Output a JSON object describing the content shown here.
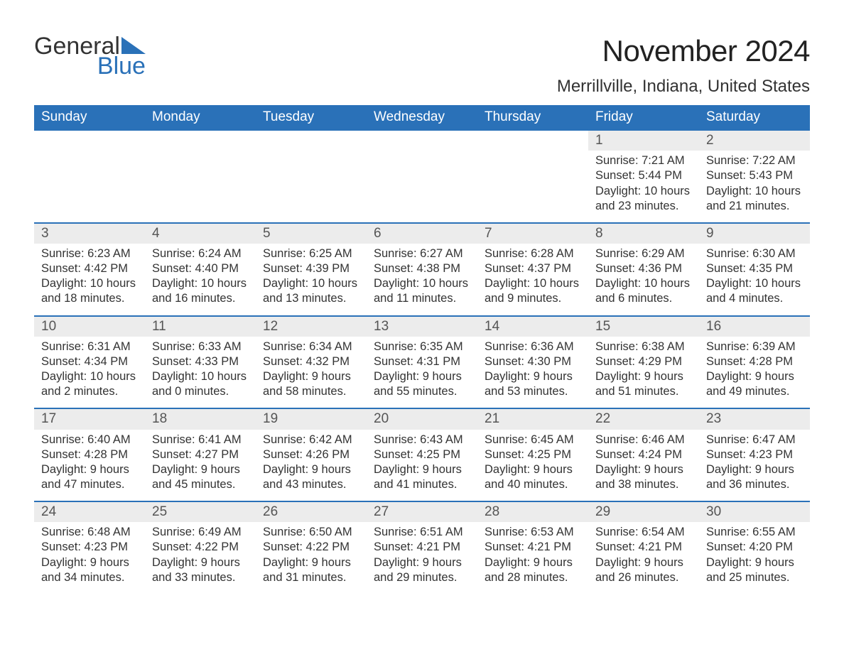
{
  "brand": {
    "word1": "General",
    "word2": "Blue",
    "accent_color": "#2a71b8"
  },
  "title": "November 2024",
  "location": "Merrillville, Indiana, United States",
  "weekdays": [
    "Sunday",
    "Monday",
    "Tuesday",
    "Wednesday",
    "Thursday",
    "Friday",
    "Saturday"
  ],
  "colors": {
    "header_bg": "#2a71b8",
    "header_text": "#ffffff",
    "daynum_bg": "#ececec",
    "rule": "#2a71b8",
    "body_text": "#333333"
  },
  "layout": {
    "leading_blanks": 5,
    "days_in_month": 30
  },
  "days": {
    "1": {
      "sunrise": "7:21 AM",
      "sunset": "5:44 PM",
      "daylight": "10 hours and 23 minutes."
    },
    "2": {
      "sunrise": "7:22 AM",
      "sunset": "5:43 PM",
      "daylight": "10 hours and 21 minutes."
    },
    "3": {
      "sunrise": "6:23 AM",
      "sunset": "4:42 PM",
      "daylight": "10 hours and 18 minutes."
    },
    "4": {
      "sunrise": "6:24 AM",
      "sunset": "4:40 PM",
      "daylight": "10 hours and 16 minutes."
    },
    "5": {
      "sunrise": "6:25 AM",
      "sunset": "4:39 PM",
      "daylight": "10 hours and 13 minutes."
    },
    "6": {
      "sunrise": "6:27 AM",
      "sunset": "4:38 PM",
      "daylight": "10 hours and 11 minutes."
    },
    "7": {
      "sunrise": "6:28 AM",
      "sunset": "4:37 PM",
      "daylight": "10 hours and 9 minutes."
    },
    "8": {
      "sunrise": "6:29 AM",
      "sunset": "4:36 PM",
      "daylight": "10 hours and 6 minutes."
    },
    "9": {
      "sunrise": "6:30 AM",
      "sunset": "4:35 PM",
      "daylight": "10 hours and 4 minutes."
    },
    "10": {
      "sunrise": "6:31 AM",
      "sunset": "4:34 PM",
      "daylight": "10 hours and 2 minutes."
    },
    "11": {
      "sunrise": "6:33 AM",
      "sunset": "4:33 PM",
      "daylight": "10 hours and 0 minutes."
    },
    "12": {
      "sunrise": "6:34 AM",
      "sunset": "4:32 PM",
      "daylight": "9 hours and 58 minutes."
    },
    "13": {
      "sunrise": "6:35 AM",
      "sunset": "4:31 PM",
      "daylight": "9 hours and 55 minutes."
    },
    "14": {
      "sunrise": "6:36 AM",
      "sunset": "4:30 PM",
      "daylight": "9 hours and 53 minutes."
    },
    "15": {
      "sunrise": "6:38 AM",
      "sunset": "4:29 PM",
      "daylight": "9 hours and 51 minutes."
    },
    "16": {
      "sunrise": "6:39 AM",
      "sunset": "4:28 PM",
      "daylight": "9 hours and 49 minutes."
    },
    "17": {
      "sunrise": "6:40 AM",
      "sunset": "4:28 PM",
      "daylight": "9 hours and 47 minutes."
    },
    "18": {
      "sunrise": "6:41 AM",
      "sunset": "4:27 PM",
      "daylight": "9 hours and 45 minutes."
    },
    "19": {
      "sunrise": "6:42 AM",
      "sunset": "4:26 PM",
      "daylight": "9 hours and 43 minutes."
    },
    "20": {
      "sunrise": "6:43 AM",
      "sunset": "4:25 PM",
      "daylight": "9 hours and 41 minutes."
    },
    "21": {
      "sunrise": "6:45 AM",
      "sunset": "4:25 PM",
      "daylight": "9 hours and 40 minutes."
    },
    "22": {
      "sunrise": "6:46 AM",
      "sunset": "4:24 PM",
      "daylight": "9 hours and 38 minutes."
    },
    "23": {
      "sunrise": "6:47 AM",
      "sunset": "4:23 PM",
      "daylight": "9 hours and 36 minutes."
    },
    "24": {
      "sunrise": "6:48 AM",
      "sunset": "4:23 PM",
      "daylight": "9 hours and 34 minutes."
    },
    "25": {
      "sunrise": "6:49 AM",
      "sunset": "4:22 PM",
      "daylight": "9 hours and 33 minutes."
    },
    "26": {
      "sunrise": "6:50 AM",
      "sunset": "4:22 PM",
      "daylight": "9 hours and 31 minutes."
    },
    "27": {
      "sunrise": "6:51 AM",
      "sunset": "4:21 PM",
      "daylight": "9 hours and 29 minutes."
    },
    "28": {
      "sunrise": "6:53 AM",
      "sunset": "4:21 PM",
      "daylight": "9 hours and 28 minutes."
    },
    "29": {
      "sunrise": "6:54 AM",
      "sunset": "4:21 PM",
      "daylight": "9 hours and 26 minutes."
    },
    "30": {
      "sunrise": "6:55 AM",
      "sunset": "4:20 PM",
      "daylight": "9 hours and 25 minutes."
    }
  },
  "labels": {
    "sunrise": "Sunrise: ",
    "sunset": "Sunset: ",
    "daylight": "Daylight: "
  }
}
